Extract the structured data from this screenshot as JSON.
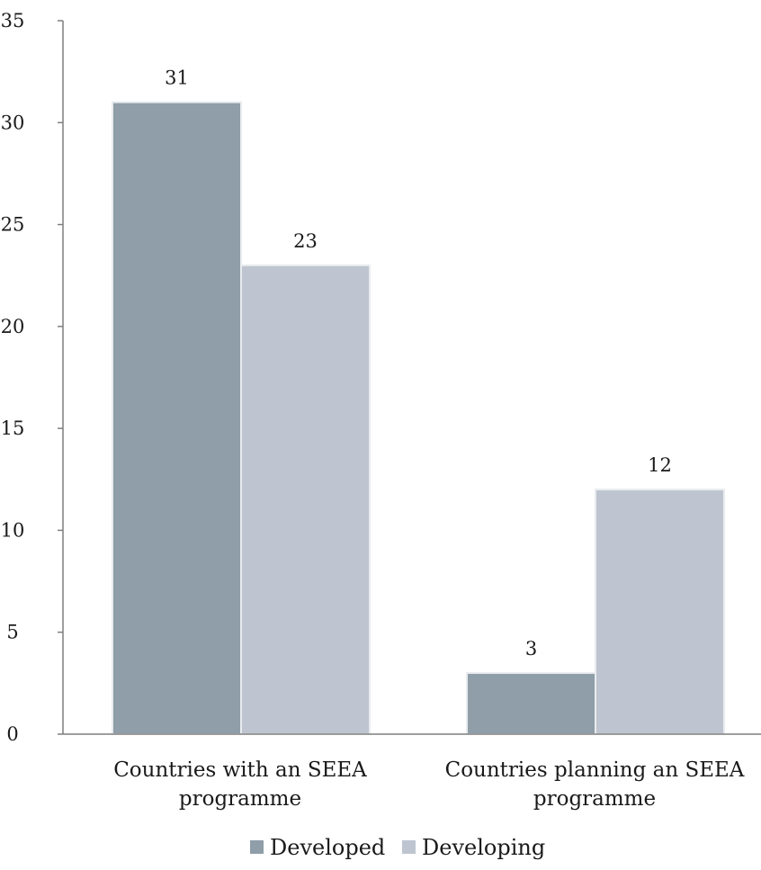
{
  "chart_data": {
    "type": "bar",
    "title": "",
    "xlabel": "",
    "ylabel": "",
    "categories": [
      [
        "Countries with an SEEA",
        "programme"
      ],
      [
        "Countries planning an SEEA",
        "programme"
      ]
    ],
    "series": [
      {
        "name": "Developed",
        "values": [
          31,
          3
        ],
        "color": "#8f9ea9"
      },
      {
        "name": "Developing",
        "values": [
          23,
          12
        ],
        "color": "#bec5d0"
      }
    ],
    "ylim": [
      0,
      35
    ],
    "yticks": [
      0,
      5,
      10,
      15,
      20,
      25,
      30,
      35
    ],
    "grid": false,
    "legend_position": "bottom",
    "data_labels": true
  }
}
